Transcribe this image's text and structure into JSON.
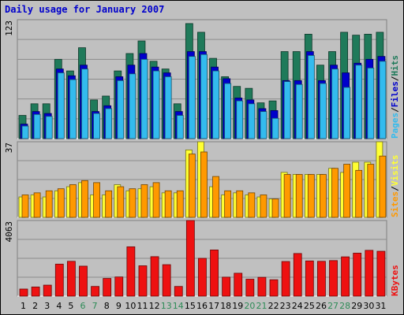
{
  "chart_title": "Daily usage for January 2007",
  "colors": {
    "hits": "#1f7a5a",
    "files": "#0000cc",
    "pages": "#33bbee",
    "visits": "#ffff33",
    "sites": "#ff9900",
    "kbytes": "#ee1111",
    "weekend_day_label": "#2e8b57",
    "weekday_label": "#000000"
  },
  "chart_data": [
    {
      "type": "bar",
      "panel": "top",
      "ytick_label": "123",
      "ylim": [
        0,
        123
      ],
      "legend": [
        "Pages",
        "/",
        "Files",
        "/",
        "Hits"
      ],
      "categories": [
        "1",
        "2",
        "3",
        "4",
        "5",
        "6",
        "7",
        "8",
        "9",
        "10",
        "11",
        "12",
        "13",
        "14",
        "15",
        "16",
        "17",
        "18",
        "19",
        "20",
        "21",
        "22",
        "23",
        "24",
        "25",
        "26",
        "27",
        "28",
        "29",
        "30",
        "31"
      ],
      "series": [
        {
          "name": "Hits",
          "values": [
            24,
            36,
            36,
            82,
            70,
            94,
            40,
            44,
            70,
            88,
            101,
            80,
            72,
            36,
            119,
            110,
            83,
            64,
            54,
            52,
            37,
            39,
            90,
            90,
            108,
            76,
            90,
            110,
            107,
            108,
            110
          ]
        },
        {
          "name": "Files",
          "values": [
            15,
            28,
            26,
            72,
            65,
            76,
            28,
            34,
            64,
            76,
            88,
            74,
            68,
            28,
            90,
            90,
            74,
            62,
            42,
            40,
            31,
            29,
            60,
            60,
            90,
            60,
            76,
            68,
            78,
            82,
            85
          ]
        },
        {
          "name": "Pages",
          "values": [
            13,
            25,
            23,
            68,
            61,
            72,
            26,
            31,
            60,
            67,
            82,
            70,
            64,
            24,
            85,
            87,
            70,
            57,
            39,
            36,
            28,
            21,
            59,
            56,
            86,
            57,
            72,
            53,
            76,
            73,
            80
          ]
        }
      ]
    },
    {
      "type": "bar",
      "panel": "middle",
      "ytick_label": "37",
      "ylim": [
        0,
        37
      ],
      "legend": [
        "Sites",
        "/",
        "Visits"
      ],
      "categories": [
        "1",
        "2",
        "3",
        "4",
        "5",
        "6",
        "7",
        "8",
        "9",
        "10",
        "11",
        "12",
        "13",
        "14",
        "15",
        "16",
        "17",
        "18",
        "19",
        "20",
        "21",
        "22",
        "23",
        "24",
        "25",
        "26",
        "27",
        "28",
        "29",
        "30",
        "31"
      ],
      "series": [
        {
          "name": "Visits",
          "values": [
            10,
            11,
            10,
            13,
            15,
            17,
            11,
            11,
            16,
            13,
            14,
            15,
            12,
            12,
            33,
            37,
            15,
            11,
            12,
            11,
            10,
            9,
            22,
            21,
            21,
            21,
            24,
            22,
            27,
            27,
            37
          ]
        },
        {
          "name": "Sites",
          "values": [
            11,
            12,
            13,
            14,
            16,
            18,
            17,
            13,
            15,
            14,
            16,
            17,
            13,
            13,
            31,
            32,
            20,
            13,
            13,
            12,
            11,
            9,
            21,
            21,
            21,
            21,
            24,
            26,
            23,
            26,
            30
          ]
        }
      ]
    },
    {
      "type": "bar",
      "panel": "bottom",
      "ytick_label": "4063",
      "ylim": [
        0,
        4063
      ],
      "legend": [
        "KBytes"
      ],
      "categories": [
        "1",
        "2",
        "3",
        "4",
        "5",
        "6",
        "7",
        "8",
        "9",
        "10",
        "11",
        "12",
        "13",
        "14",
        "15",
        "16",
        "17",
        "18",
        "19",
        "20",
        "21",
        "22",
        "23",
        "24",
        "25",
        "26",
        "27",
        "28",
        "29",
        "30",
        "31"
      ],
      "series": [
        {
          "name": "KBytes",
          "values": [
            380,
            490,
            590,
            1720,
            1870,
            1610,
            520,
            950,
            1030,
            2650,
            1630,
            2120,
            1690,
            520,
            4063,
            2030,
            2480,
            1020,
            1230,
            910,
            1010,
            880,
            1860,
            2290,
            1890,
            1870,
            1910,
            2110,
            2310,
            2460,
            2410
          ]
        }
      ]
    }
  ],
  "x_labels": [
    "1",
    "2",
    "3",
    "4",
    "5",
    "6",
    "7",
    "8",
    "9",
    "10",
    "11",
    "12",
    "13",
    "14",
    "15",
    "16",
    "17",
    "18",
    "19",
    "20",
    "21",
    "22",
    "23",
    "24",
    "25",
    "26",
    "27",
    "28",
    "29",
    "30",
    "31"
  ],
  "weekend_days": [
    "6",
    "7",
    "13",
    "14",
    "20",
    "21",
    "27",
    "28"
  ]
}
